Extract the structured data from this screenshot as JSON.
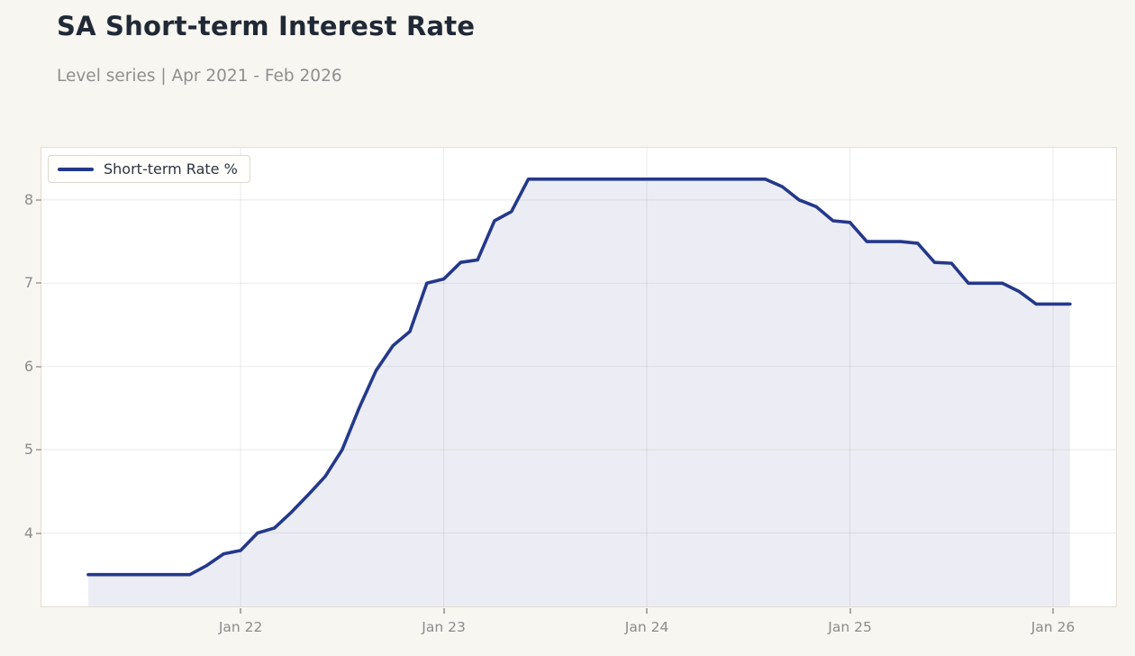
{
  "header": {
    "title": "SA Short-term Interest Rate",
    "subtitle": "Level series | Apr 2021 - Feb 2026"
  },
  "chart_data": {
    "type": "area",
    "title": "SA Short-term Interest Rate",
    "subtitle": "Level series | Apr 2021 - Feb 2026",
    "legend": {
      "label": "Short-term Rate %",
      "position": "top-left"
    },
    "grid": true,
    "xlabel": "",
    "ylabel": "",
    "y_ticks": [
      8,
      7,
      6,
      5,
      4
    ],
    "ylim": [
      3.15,
      8.63
    ],
    "x_tick_labels": [
      "Jan 22",
      "Jan 23",
      "Jan 24",
      "Jan 25",
      "Jan 26"
    ],
    "x_tick_month_indices": [
      9,
      21,
      33,
      45,
      57
    ],
    "x": [
      "Apr 2021",
      "May 2021",
      "Jun 2021",
      "Jul 2021",
      "Aug 2021",
      "Sep 2021",
      "Oct 2021",
      "Nov 2021",
      "Dec 2021",
      "Jan 2022",
      "Feb 2022",
      "Mar 2022",
      "Apr 2022",
      "May 2022",
      "Jun 2022",
      "Jul 2022",
      "Aug 2022",
      "Sep 2022",
      "Oct 2022",
      "Nov 2022",
      "Dec 2022",
      "Jan 2023",
      "Feb 2023",
      "Mar 2023",
      "Apr 2023",
      "May 2023",
      "Jun 2023",
      "Jul 2023",
      "Aug 2023",
      "Sep 2023",
      "Oct 2023",
      "Nov 2023",
      "Dec 2023",
      "Jan 2024",
      "Feb 2024",
      "Mar 2024",
      "Apr 2024",
      "May 2024",
      "Jun 2024",
      "Jul 2024",
      "Aug 2024",
      "Sep 2024",
      "Oct 2024",
      "Nov 2024",
      "Dec 2024",
      "Jan 2025",
      "Feb 2025",
      "Mar 2025",
      "Apr 2025",
      "May 2025",
      "Jun 2025",
      "Jul 2025",
      "Aug 2025",
      "Sep 2025",
      "Oct 2025",
      "Nov 2025",
      "Dec 2025",
      "Jan 2026",
      "Feb 2026"
    ],
    "series": [
      {
        "name": "Short-term Rate %",
        "values": [
          3.5,
          3.5,
          3.5,
          3.5,
          3.5,
          3.5,
          3.5,
          3.61,
          3.75,
          3.79,
          4.0,
          4.06,
          4.25,
          4.46,
          4.68,
          5.0,
          5.5,
          5.95,
          6.25,
          6.42,
          7.0,
          7.05,
          7.25,
          7.28,
          7.75,
          7.86,
          8.25,
          8.25,
          8.25,
          8.25,
          8.25,
          8.25,
          8.25,
          8.25,
          8.25,
          8.25,
          8.25,
          8.25,
          8.25,
          8.25,
          8.25,
          8.16,
          8.0,
          7.92,
          7.75,
          7.73,
          7.5,
          7.5,
          7.5,
          7.48,
          7.25,
          7.24,
          7.0,
          7.0,
          7.0,
          6.9,
          6.75,
          6.75,
          6.75
        ]
      }
    ],
    "colors": {
      "line": "#24388b",
      "fill": "#ecedf4",
      "gridline": "#70707e"
    }
  }
}
